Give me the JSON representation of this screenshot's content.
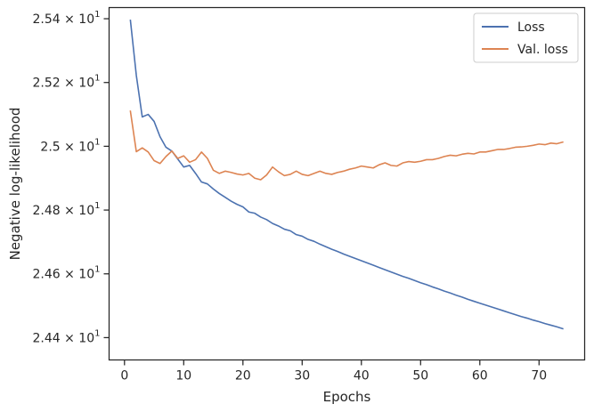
{
  "chart_data": {
    "type": "line",
    "xlabel": "Epochs",
    "ylabel": "Negative log-likelihood",
    "xlim": [
      -2.6,
      77.7
    ],
    "ylim": [
      24.33,
      25.435
    ],
    "grid": false,
    "legend_position": "top-right",
    "x_ticks": [
      0,
      10,
      20,
      30,
      40,
      50,
      60,
      70
    ],
    "x_tick_labels": [
      "0",
      "10",
      "20",
      "30",
      "40",
      "50",
      "60",
      "70"
    ],
    "y_ticks": [
      {
        "value": 25.4,
        "mantissa": "2.54"
      },
      {
        "value": 25.2,
        "mantissa": "2.52"
      },
      {
        "value": 25.0,
        "mantissa": "2.5"
      },
      {
        "value": 24.8,
        "mantissa": "2.48"
      },
      {
        "value": 24.6,
        "mantissa": "2.46"
      },
      {
        "value": 24.4,
        "mantissa": "2.44"
      }
    ],
    "y_tick_suffix": "× 10",
    "y_tick_exponent": "1",
    "x": [
      1,
      2,
      3,
      4,
      5,
      6,
      7,
      8,
      9,
      10,
      11,
      12,
      13,
      14,
      15,
      16,
      17,
      18,
      19,
      20,
      21,
      22,
      23,
      24,
      25,
      26,
      27,
      28,
      29,
      30,
      31,
      32,
      33,
      34,
      35,
      36,
      37,
      38,
      39,
      40,
      41,
      42,
      43,
      44,
      45,
      46,
      47,
      48,
      49,
      50,
      51,
      52,
      53,
      54,
      55,
      56,
      57,
      58,
      59,
      60,
      61,
      62,
      63,
      64,
      65,
      66,
      67,
      68,
      69,
      70,
      71,
      72,
      73,
      74
    ],
    "series": [
      {
        "name": "Loss",
        "color": "#4c72b0",
        "values": [
          25.395,
          25.222,
          25.092,
          25.1,
          25.078,
          25.03,
          24.997,
          24.985,
          24.96,
          24.935,
          24.94,
          24.915,
          24.888,
          24.882,
          24.866,
          24.852,
          24.84,
          24.828,
          24.818,
          24.81,
          24.794,
          24.79,
          24.778,
          24.77,
          24.758,
          24.75,
          24.74,
          24.735,
          24.723,
          24.718,
          24.708,
          24.702,
          24.693,
          24.685,
          24.677,
          24.67,
          24.662,
          24.655,
          24.648,
          24.641,
          24.634,
          24.627,
          24.62,
          24.613,
          24.606,
          24.599,
          24.592,
          24.586,
          24.579,
          24.572,
          24.566,
          24.559,
          24.553,
          24.546,
          24.54,
          24.533,
          24.527,
          24.52,
          24.514,
          24.508,
          24.502,
          24.496,
          24.49,
          24.484,
          24.478,
          24.472,
          24.466,
          24.461,
          24.455,
          24.45,
          24.444,
          24.439,
          24.434,
          24.428
        ]
      },
      {
        "name": "Val. loss",
        "color": "#dd8452",
        "values": [
          25.11,
          24.983,
          24.995,
          24.982,
          24.955,
          24.946,
          24.968,
          24.985,
          24.962,
          24.97,
          24.95,
          24.958,
          24.982,
          24.962,
          24.925,
          24.915,
          24.922,
          24.918,
          24.913,
          24.91,
          24.915,
          24.9,
          24.895,
          24.91,
          24.935,
          24.92,
          24.908,
          24.912,
          24.922,
          24.912,
          24.908,
          24.915,
          24.922,
          24.915,
          24.912,
          24.918,
          24.922,
          24.928,
          24.932,
          24.938,
          24.935,
          24.932,
          24.942,
          24.948,
          24.94,
          24.938,
          24.948,
          24.952,
          24.95,
          24.953,
          24.958,
          24.958,
          24.962,
          24.968,
          24.972,
          24.97,
          24.975,
          24.978,
          24.976,
          24.982,
          24.982,
          24.986,
          24.99,
          24.99,
          24.993,
          24.997,
          24.998,
          25.0,
          25.003,
          25.007,
          25.005,
          25.01,
          25.008,
          25.013
        ]
      }
    ]
  }
}
